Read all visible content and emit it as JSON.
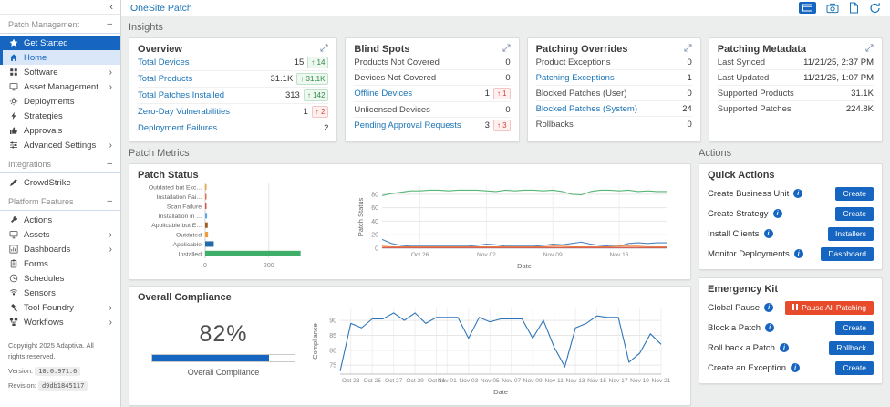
{
  "topbar": {
    "title": "OneSite Patch",
    "icons": [
      "dashboard-view",
      "camera",
      "export-document",
      "refresh"
    ]
  },
  "sidebar": {
    "sections": [
      {
        "label": "Patch Management",
        "items": [
          {
            "label": "Get Started",
            "icon": "star",
            "variant": "cta"
          },
          {
            "label": "Home",
            "icon": "home",
            "variant": "selected"
          },
          {
            "label": "Software",
            "icon": "grid",
            "expandable": true
          },
          {
            "label": "Asset Management",
            "icon": "monitor",
            "expandable": true
          },
          {
            "label": "Deployments",
            "icon": "gear"
          },
          {
            "label": "Strategies",
            "icon": "lightning"
          },
          {
            "label": "Approvals",
            "icon": "thumbs-up"
          },
          {
            "label": "Advanced Settings",
            "icon": "settings",
            "expandable": true
          }
        ]
      },
      {
        "label": "Integrations",
        "items": [
          {
            "label": "CrowdStrike",
            "icon": "pen"
          }
        ]
      },
      {
        "label": "Platform Features",
        "items": [
          {
            "label": "Actions",
            "icon": "wrench"
          },
          {
            "label": "Assets",
            "icon": "monitor",
            "expandable": true
          },
          {
            "label": "Dashboards",
            "icon": "bar-chart",
            "expandable": true
          },
          {
            "label": "Forms",
            "icon": "clipboard"
          },
          {
            "label": "Schedules",
            "icon": "clock"
          },
          {
            "label": "Sensors",
            "icon": "sensor"
          },
          {
            "label": "Tool Foundry",
            "icon": "hammer",
            "expandable": true
          },
          {
            "label": "Workflows",
            "icon": "workflow",
            "expandable": true
          }
        ]
      }
    ],
    "footer": {
      "copyright": "Copyright 2025 Adaptiva. All rights reserved.",
      "version_label": "Version:",
      "version": "10.0.971.6",
      "revision_label": "Revision:",
      "revision": "d9db1845117"
    }
  },
  "insights": {
    "section_label": "Insights",
    "cards": [
      {
        "title": "Overview",
        "rows": [
          {
            "label": "Total Devices",
            "link": true,
            "value": "15",
            "badge": {
              "dir": "up",
              "text": "14",
              "tone": "good"
            }
          },
          {
            "label": "Total Products",
            "link": true,
            "value": "31.1K",
            "badge": {
              "dir": "up",
              "text": "31.1K",
              "tone": "good"
            }
          },
          {
            "label": "Total Patches Installed",
            "link": true,
            "value": "313",
            "badge": {
              "dir": "up",
              "text": "142",
              "tone": "good"
            }
          },
          {
            "label": "Zero-Day Vulnerabilities",
            "link": true,
            "value": "1",
            "badge": {
              "dir": "up",
              "text": "2",
              "tone": "bad"
            }
          },
          {
            "label": "Deployment Failures",
            "link": true,
            "value": "2"
          }
        ]
      },
      {
        "title": "Blind Spots",
        "rows": [
          {
            "label": "Products Not Covered",
            "value": "0"
          },
          {
            "label": "Devices Not Covered",
            "value": "0"
          },
          {
            "label": "Offline Devices",
            "link": true,
            "value": "1",
            "badge": {
              "dir": "up",
              "text": "1",
              "tone": "bad"
            }
          },
          {
            "label": "Unlicensed Devices",
            "value": "0"
          },
          {
            "label": "Pending Approval Requests",
            "link": true,
            "value": "3",
            "badge": {
              "dir": "up",
              "text": "3",
              "tone": "bad"
            }
          }
        ]
      },
      {
        "title": "Patching Overrides",
        "rows": [
          {
            "label": "Product Exceptions",
            "value": "0"
          },
          {
            "label": "Patching Exceptions",
            "link": true,
            "value": "1"
          },
          {
            "label": "Blocked Patches (User)",
            "value": "0"
          },
          {
            "label": "Blocked Patches (System)",
            "link": true,
            "value": "24"
          },
          {
            "label": "Rollbacks",
            "value": "0"
          }
        ]
      },
      {
        "title": "Patching Metadata",
        "rows": [
          {
            "label": "Last Synced",
            "value": "11/21/25, 2:37 PM"
          },
          {
            "label": "Last Updated",
            "value": "11/21/25, 1:07 PM"
          },
          {
            "label": "Supported Products",
            "value": "31.1K"
          },
          {
            "label": "Supported Patches",
            "value": "224.8K"
          }
        ]
      }
    ]
  },
  "metrics": {
    "section_label": "Patch Metrics",
    "patch_status_title": "Patch Status",
    "compliance_title": "Overall Compliance",
    "gauge": {
      "value_text": "82%",
      "percent": 82,
      "label": "Overall Compliance"
    }
  },
  "actions": {
    "section_label": "Actions",
    "quick_actions": {
      "title": "Quick Actions",
      "rows": [
        {
          "label": "Create Business Unit",
          "button": "Create"
        },
        {
          "label": "Create Strategy",
          "button": "Create"
        },
        {
          "label": "Install Clients",
          "button": "Installers"
        },
        {
          "label": "Monitor Deployments",
          "button": "Dashboard"
        }
      ]
    },
    "emergency_kit": {
      "title": "Emergency Kit",
      "rows": [
        {
          "label": "Global Pause",
          "button": "Pause All Patching",
          "variant": "danger",
          "button_icon": "pause"
        },
        {
          "label": "Block a Patch",
          "button": "Create"
        },
        {
          "label": "Roll back a Patch",
          "button": "Rollback"
        },
        {
          "label": "Create an Exception",
          "button": "Create"
        }
      ]
    }
  },
  "chart_data": [
    {
      "id": "patch-status-breakdown",
      "type": "bar",
      "orientation": "horizontal",
      "title": "Patch Status",
      "categories": [
        "Outdated but Exc...",
        "Installation Fai...",
        "Scan Failure",
        "Installation in ...",
        "Applicable but E...",
        "Outdated",
        "Applicable",
        "Installed"
      ],
      "values": [
        2,
        2,
        3,
        6,
        8,
        9,
        27,
        300
      ],
      "colors": [
        "#f0a13c",
        "#e4704f",
        "#dd5145",
        "#5ba7e6",
        "#a2591f",
        "#f09a38",
        "#2268ad",
        "#3fae68"
      ],
      "xticks": [
        0,
        200
      ],
      "xlim": [
        0,
        430
      ],
      "grid": true
    },
    {
      "id": "patch-status-trend",
      "type": "line",
      "ylabel": "Patch Status",
      "xlabel": "Date",
      "ylim": [
        0,
        92
      ],
      "yticks": [
        0,
        20,
        40,
        60,
        80
      ],
      "xticks": [
        "Oct 26",
        "Nov 02",
        "Nov 09",
        "Nov 16"
      ],
      "xtick_indices": [
        4,
        11,
        18,
        25
      ],
      "legend": "none",
      "grid": true,
      "series": [
        {
          "name": "green",
          "color": "#57b576",
          "values": [
            78,
            81,
            83,
            85,
            85,
            86,
            86,
            85,
            86,
            86,
            86,
            85,
            84,
            86,
            85,
            86,
            86,
            85,
            86,
            84,
            80,
            79,
            84,
            86,
            86,
            85,
            86,
            84,
            85,
            84,
            84
          ]
        },
        {
          "name": "blue",
          "color": "#4f86c0",
          "values": [
            13,
            7,
            4,
            3,
            3,
            3,
            3,
            3,
            3,
            3,
            4,
            6,
            5,
            3,
            3,
            3,
            3,
            4,
            6,
            5,
            7,
            9,
            6,
            4,
            3,
            3,
            7,
            8,
            7,
            8,
            8
          ]
        },
        {
          "name": "orange",
          "color": "#ef8a3c",
          "values": [
            3,
            2,
            2,
            2,
            2,
            2,
            2,
            2,
            2,
            2,
            2,
            2,
            2,
            2,
            2,
            2,
            2,
            2,
            3,
            3,
            2,
            2,
            2,
            2,
            2,
            3,
            3,
            3,
            2,
            2,
            2
          ]
        },
        {
          "name": "red",
          "color": "#d4544a",
          "values": [
            1,
            1,
            1,
            1,
            1,
            1,
            1,
            1,
            1,
            1,
            1,
            1,
            1,
            1,
            1,
            1,
            1,
            1,
            1,
            1,
            1,
            1,
            1,
            1,
            1,
            1,
            1,
            1,
            1,
            1,
            1
          ]
        }
      ]
    },
    {
      "id": "overall-compliance-trend",
      "type": "line",
      "ylabel": "Compliance",
      "xlabel": "Date",
      "ylim": [
        72,
        94
      ],
      "yticks": [
        75,
        80,
        85,
        90
      ],
      "xticks": [
        "Oct 23",
        "Oct 25",
        "Oct 27",
        "Oct 29",
        "Oct 31",
        "Nov 01",
        "Nov 03",
        "Nov 05",
        "Nov 07",
        "Nov 09",
        "Nov 11",
        "Nov 13",
        "Nov 15",
        "Nov 17",
        "Nov 19",
        "Nov 21"
      ],
      "xtick_indices": [
        1,
        3,
        5,
        7,
        9,
        10,
        12,
        14,
        16,
        18,
        20,
        22,
        24,
        26,
        28,
        30
      ],
      "legend": "none",
      "grid": true,
      "series": [
        {
          "name": "compliance",
          "color": "#2e75b6",
          "values": [
            73,
            89,
            87.5,
            90.5,
            90.5,
            92.5,
            90,
            92.5,
            89,
            91,
            91,
            91,
            84,
            91,
            89.5,
            90.5,
            90.5,
            90.5,
            84,
            90,
            81,
            74.5,
            87.5,
            89,
            91.5,
            91,
            91,
            76,
            79,
            85.5,
            82
          ]
        }
      ]
    }
  ]
}
